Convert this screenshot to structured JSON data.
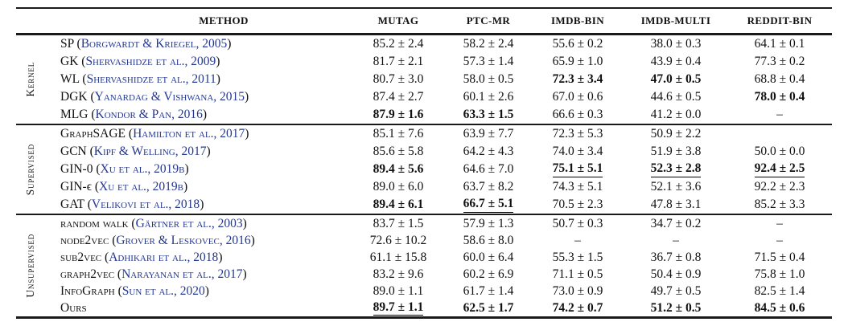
{
  "colors": {
    "citation_blue": "#23378f",
    "text": "#111111",
    "rule": "#1a1a1a",
    "background": "#ffffff"
  },
  "table": {
    "method_header": "METHOD",
    "columns": [
      "MUTAG",
      "PTC-MR",
      "IMDB-BIN",
      "IMDB-MULTI",
      "REDDIT-BIN"
    ],
    "groups": [
      {
        "label": "Kernel",
        "rows": [
          {
            "method": "SP",
            "citation": "Borgwardt & Kriegel, 2005",
            "values": [
              {
                "text": "85.2 ± 2.4"
              },
              {
                "text": "58.2 ± 2.4"
              },
              {
                "text": "55.6 ± 0.2"
              },
              {
                "text": "38.0 ± 0.3"
              },
              {
                "text": "64.1 ± 0.1"
              }
            ]
          },
          {
            "method": "GK",
            "citation": "Shervashidze et al., 2009",
            "values": [
              {
                "text": "81.7 ± 2.1"
              },
              {
                "text": "57.3 ± 1.4"
              },
              {
                "text": "65.9 ± 1.0"
              },
              {
                "text": "43.9 ± 0.4"
              },
              {
                "text": "77.3 ± 0.2"
              }
            ]
          },
          {
            "method": "WL",
            "citation": "Shervashidze et al., 2011",
            "values": [
              {
                "text": "80.7 ± 3.0"
              },
              {
                "text": "58.0 ± 0.5"
              },
              {
                "text": "72.3 ± 3.4",
                "bold": true
              },
              {
                "text": "47.0 ± 0.5",
                "bold": true
              },
              {
                "text": "68.8 ± 0.4"
              }
            ]
          },
          {
            "method": "DGK",
            "citation": "Yanardag & Vishwana, 2015",
            "values": [
              {
                "text": "87.4 ± 2.7"
              },
              {
                "text": "60.1 ± 2.6"
              },
              {
                "text": "67.0 ± 0.6"
              },
              {
                "text": "44.6 ± 0.5"
              },
              {
                "text": "78.0 ± 0.4",
                "bold": true
              }
            ]
          },
          {
            "method": "MLG",
            "citation": "Kondor & Pan, 2016",
            "values": [
              {
                "text": "87.9 ± 1.6",
                "bold": true
              },
              {
                "text": "63.3 ± 1.5",
                "bold": true
              },
              {
                "text": "66.6 ± 0.3"
              },
              {
                "text": "41.2 ± 0.0"
              },
              {
                "text": "–"
              }
            ]
          }
        ]
      },
      {
        "label": "Supervised",
        "rows": [
          {
            "method": "GraphSAGE",
            "citation": "Hamilton et al., 2017",
            "values": [
              {
                "text": "85.1 ± 7.6"
              },
              {
                "text": "63.9 ± 7.7"
              },
              {
                "text": "72.3 ± 5.3"
              },
              {
                "text": "50.9 ± 2.2"
              },
              {
                "text": ""
              }
            ]
          },
          {
            "method": "GCN",
            "citation": "Kipf & Welling, 2017",
            "values": [
              {
                "text": "85.6 ± 5.8"
              },
              {
                "text": "64.2 ± 4.3"
              },
              {
                "text": "74.0 ± 3.4"
              },
              {
                "text": "51.9 ± 3.8"
              },
              {
                "text": "50.0 ± 0.0"
              }
            ]
          },
          {
            "method": "GIN-0",
            "citation": "Xu et al., 2019b",
            "values": [
              {
                "text": "89.4 ± 5.6",
                "bold": true
              },
              {
                "text": "64.6 ± 7.0"
              },
              {
                "text": "75.1 ± 5.1",
                "bold": true,
                "underline": true
              },
              {
                "text": "52.3 ± 2.8",
                "bold": true,
                "underline": true
              },
              {
                "text": "92.4 ± 2.5",
                "bold": true,
                "underline": true
              }
            ]
          },
          {
            "method": "GIN-ϵ",
            "citation": "Xu et al., 2019b",
            "values": [
              {
                "text": "89.0 ± 6.0"
              },
              {
                "text": "63.7 ± 8.2"
              },
              {
                "text": "74.3 ± 5.1"
              },
              {
                "text": "52.1 ± 3.6"
              },
              {
                "text": "92.2 ± 2.3"
              }
            ]
          },
          {
            "method": "GAT",
            "citation": "Velikovi et al., 2018",
            "values": [
              {
                "text": "89.4 ± 6.1",
                "bold": true
              },
              {
                "text": "66.7 ± 5.1",
                "bold": true,
                "underline": true
              },
              {
                "text": "70.5 ± 2.3"
              },
              {
                "text": "47.8 ± 3.1"
              },
              {
                "text": "85.2 ± 3.3"
              }
            ]
          }
        ]
      },
      {
        "label": "Unsupervised",
        "rows": [
          {
            "method": "random walk",
            "citation": "Gärtner et al., 2003",
            "values": [
              {
                "text": "83.7 ± 1.5"
              },
              {
                "text": "57.9 ± 1.3"
              },
              {
                "text": "50.7 ± 0.3"
              },
              {
                "text": "34.7 ± 0.2"
              },
              {
                "text": "–"
              }
            ]
          },
          {
            "method": "node2vec",
            "citation": "Grover & Leskovec, 2016",
            "values": [
              {
                "text": "72.6 ± 10.2"
              },
              {
                "text": "58.6 ± 8.0"
              },
              {
                "text": "–"
              },
              {
                "text": "–"
              },
              {
                "text": "–"
              }
            ]
          },
          {
            "method": "sub2vec",
            "citation": "Adhikari et al., 2018",
            "values": [
              {
                "text": "61.1 ± 15.8"
              },
              {
                "text": "60.0 ± 6.4"
              },
              {
                "text": "55.3 ± 1.5"
              },
              {
                "text": "36.7 ± 0.8"
              },
              {
                "text": "71.5 ± 0.4"
              }
            ]
          },
          {
            "method": "graph2vec",
            "citation": "Narayanan et al., 2017",
            "values": [
              {
                "text": "83.2 ± 9.6"
              },
              {
                "text": "60.2 ± 6.9"
              },
              {
                "text": "71.1 ± 0.5"
              },
              {
                "text": "50.4 ± 0.9"
              },
              {
                "text": "75.8 ± 1.0"
              }
            ]
          },
          {
            "method": "InfoGraph",
            "citation": "Sun et al., 2020",
            "values": [
              {
                "text": "89.0 ± 1.1"
              },
              {
                "text": "61.7 ± 1.4"
              },
              {
                "text": "73.0 ± 0.9"
              },
              {
                "text": "49.7 ± 0.5"
              },
              {
                "text": "82.5 ± 1.4"
              }
            ]
          },
          {
            "method": "Ours",
            "citation": null,
            "values": [
              {
                "text": "89.7 ± 1.1",
                "bold": true,
                "underline": true
              },
              {
                "text": "62.5 ± 1.7",
                "bold": true
              },
              {
                "text": "74.2 ± 0.7",
                "bold": true
              },
              {
                "text": "51.2 ± 0.5",
                "bold": true
              },
              {
                "text": "84.5 ± 0.6",
                "bold": true
              }
            ]
          }
        ]
      }
    ]
  }
}
